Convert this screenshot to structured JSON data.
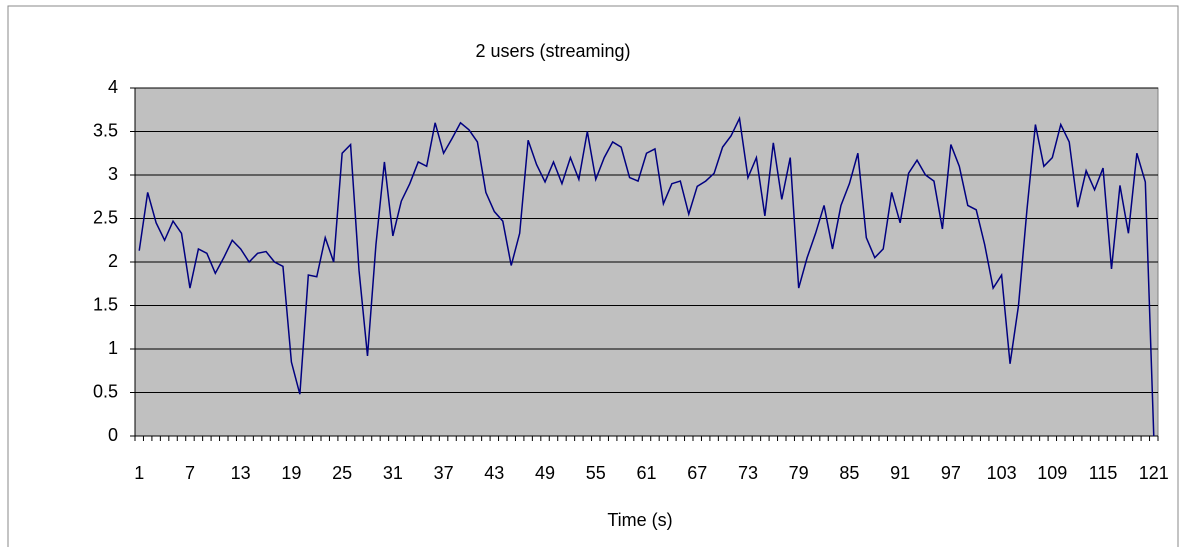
{
  "chart_data": {
    "type": "line",
    "title": "2 users (streaming)",
    "x_label": "Time (s)",
    "categories": [
      "1",
      null,
      null,
      null,
      null,
      null,
      "7",
      null,
      null,
      null,
      null,
      null,
      "13",
      null,
      null,
      null,
      null,
      null,
      "19",
      null,
      null,
      null,
      null,
      null,
      "25",
      null,
      null,
      null,
      null,
      null,
      "31",
      null,
      null,
      null,
      null,
      null,
      "37",
      null,
      null,
      null,
      null,
      null,
      "43",
      null,
      null,
      null,
      null,
      null,
      "49",
      null,
      null,
      null,
      null,
      null,
      "55",
      null,
      null,
      null,
      null,
      null,
      "61",
      null,
      null,
      null,
      null,
      null,
      "67",
      null,
      null,
      null,
      null,
      null,
      "73",
      null,
      null,
      null,
      null,
      null,
      "79",
      null,
      null,
      null,
      null,
      null,
      "85",
      null,
      null,
      null,
      null,
      null,
      "91",
      null,
      null,
      null,
      null,
      null,
      "97",
      null,
      null,
      null,
      null,
      null,
      "103",
      null,
      null,
      null,
      null,
      null,
      "109",
      null,
      null,
      null,
      null,
      null,
      "115",
      null,
      null,
      null,
      null,
      null,
      "121"
    ],
    "series": [
      {
        "name": "2 users (streaming)",
        "color": "#000080",
        "values": [
          2.13,
          2.8,
          2.45,
          2.25,
          2.47,
          2.33,
          1.7,
          2.15,
          2.1,
          1.87,
          2.05,
          2.25,
          2.15,
          2.0,
          2.1,
          2.12,
          2.0,
          1.95,
          0.85,
          0.48,
          1.85,
          1.83,
          2.28,
          2.0,
          3.25,
          3.35,
          1.9,
          0.92,
          2.2,
          3.15,
          2.3,
          2.7,
          2.9,
          3.15,
          3.1,
          3.6,
          3.25,
          3.42,
          3.6,
          3.52,
          3.38,
          2.8,
          2.58,
          2.47,
          1.96,
          2.33,
          3.4,
          3.12,
          2.92,
          3.15,
          2.9,
          3.2,
          2.95,
          3.5,
          2.95,
          3.2,
          3.38,
          3.32,
          2.97,
          2.93,
          3.25,
          3.3,
          2.67,
          2.9,
          2.93,
          2.55,
          2.87,
          2.93,
          3.02,
          3.32,
          3.45,
          3.65,
          2.97,
          3.2,
          2.53,
          3.37,
          2.72,
          3.2,
          1.7,
          2.05,
          2.33,
          2.65,
          2.15,
          2.65,
          2.9,
          3.25,
          2.28,
          2.05,
          2.15,
          2.8,
          2.45,
          3.02,
          3.17,
          3.0,
          2.93,
          2.38,
          3.35,
          3.1,
          2.65,
          2.6,
          2.2,
          1.7,
          1.85,
          0.83,
          1.5,
          2.6,
          3.58,
          3.1,
          3.2,
          3.58,
          3.38,
          2.63,
          3.05,
          2.83,
          3.08,
          1.92,
          2.88,
          2.33,
          3.25,
          2.92,
          0
        ]
      }
    ],
    "ylim": [
      0,
      4
    ],
    "yticks": [
      0,
      {
        "value": 0.5,
        "label": "0.5"
      },
      1,
      {
        "value": 1.5,
        "label": "1.5"
      },
      2,
      {
        "value": 2.5,
        "label": "2.5"
      },
      3,
      {
        "value": 3.5,
        "label": "3.5"
      },
      4
    ],
    "grid": true,
    "plot_background": "#c0c0c0"
  }
}
